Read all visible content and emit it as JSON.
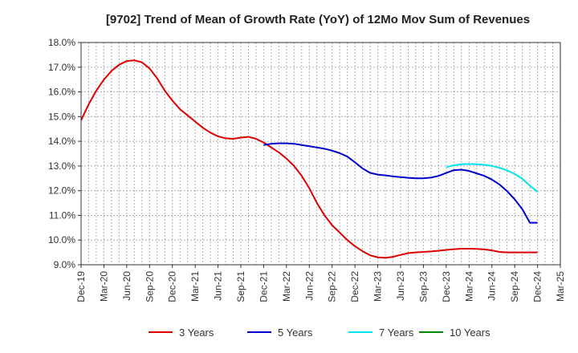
{
  "chart_data": {
    "type": "line",
    "title": "[9702]  Trend of Mean of Growth Rate (YoY) of 12Mo Mov Sum of Revenues",
    "xlabel": "",
    "ylabel": "",
    "x_tick_labels": [
      "Dec-19",
      "Mar-20",
      "Jun-20",
      "Sep-20",
      "Dec-20",
      "Mar-21",
      "Jun-21",
      "Sep-21",
      "Dec-21",
      "Mar-22",
      "Jun-22",
      "Sep-22",
      "Dec-22",
      "Mar-23",
      "Jun-23",
      "Sep-23",
      "Dec-23",
      "Mar-24",
      "Jun-24",
      "Sep-24",
      "Dec-24",
      "Mar-25"
    ],
    "y_tick_labels": [
      "9.0%",
      "10.0%",
      "11.0%",
      "12.0%",
      "13.0%",
      "14.0%",
      "15.0%",
      "16.0%",
      "17.0%",
      "18.0%"
    ],
    "ylim": [
      9.0,
      18.0
    ],
    "x_range_months": [
      0,
      63
    ],
    "grid": true,
    "legend_position": "bottom",
    "series": [
      {
        "name": "3 Years",
        "color": "#dd0000",
        "x_months": [
          0,
          1,
          2,
          3,
          4,
          5,
          6,
          7,
          8,
          9,
          10,
          11,
          12,
          13,
          14,
          15,
          16,
          17,
          18,
          19,
          20,
          21,
          22,
          23,
          24,
          25,
          26,
          27,
          28,
          29,
          30,
          31,
          32,
          33,
          34,
          35,
          36,
          37,
          38,
          39,
          40,
          41,
          42,
          43,
          44,
          45,
          46,
          47,
          48,
          49,
          50,
          51,
          52,
          53,
          54,
          55,
          56,
          57,
          58,
          59,
          60
        ],
        "values": [
          14.85,
          15.5,
          16.05,
          16.5,
          16.85,
          17.1,
          17.25,
          17.28,
          17.2,
          16.95,
          16.55,
          16.05,
          15.65,
          15.3,
          15.05,
          14.8,
          14.55,
          14.35,
          14.2,
          14.12,
          14.1,
          14.15,
          14.18,
          14.1,
          13.95,
          13.75,
          13.55,
          13.3,
          13.0,
          12.6,
          12.1,
          11.5,
          11.0,
          10.6,
          10.3,
          10.0,
          9.75,
          9.55,
          9.38,
          9.3,
          9.28,
          9.32,
          9.4,
          9.47,
          9.5,
          9.52,
          9.54,
          9.57,
          9.6,
          9.63,
          9.65,
          9.65,
          9.64,
          9.62,
          9.58,
          9.52,
          9.5,
          9.5,
          9.5,
          9.5,
          9.5
        ]
      },
      {
        "name": "5 Years",
        "color": "#0000cc",
        "x_months": [
          24,
          25,
          26,
          27,
          28,
          29,
          30,
          31,
          32,
          33,
          34,
          35,
          36,
          37,
          38,
          39,
          40,
          41,
          42,
          43,
          44,
          45,
          46,
          47,
          48,
          49,
          50,
          51,
          52,
          53,
          54,
          55,
          56,
          57,
          58,
          59,
          60
        ],
        "values": [
          13.85,
          13.9,
          13.92,
          13.92,
          13.9,
          13.85,
          13.8,
          13.75,
          13.7,
          13.62,
          13.52,
          13.38,
          13.15,
          12.9,
          12.72,
          12.65,
          12.62,
          12.58,
          12.55,
          12.52,
          12.5,
          12.5,
          12.53,
          12.6,
          12.72,
          12.83,
          12.85,
          12.8,
          12.7,
          12.6,
          12.45,
          12.25,
          11.98,
          11.65,
          11.25,
          10.7,
          10.7
        ]
      },
      {
        "name": "7 Years",
        "color": "#00e5ee",
        "x_months": [
          48,
          49,
          50,
          51,
          52,
          53,
          54,
          55,
          56,
          57,
          58,
          59,
          60
        ],
        "values": [
          12.95,
          13.03,
          13.07,
          13.08,
          13.07,
          13.05,
          13.0,
          12.93,
          12.82,
          12.68,
          12.48,
          12.2,
          11.95
        ]
      },
      {
        "name": "10 Years",
        "color": "#008800",
        "x_months": [],
        "values": []
      }
    ]
  }
}
